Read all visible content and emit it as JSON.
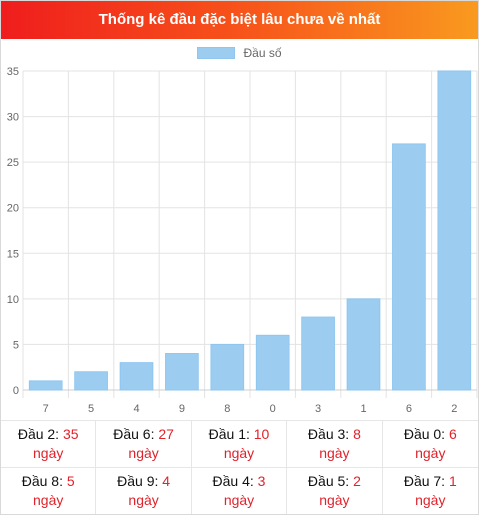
{
  "header": {
    "title": "Thống kê đầu đặc biệt lâu chưa về nhất"
  },
  "legend": {
    "label": "Đầu số",
    "color": "#9ccdf1"
  },
  "chart_data": {
    "type": "bar",
    "categories": [
      "7",
      "5",
      "4",
      "9",
      "8",
      "0",
      "3",
      "1",
      "6",
      "2"
    ],
    "series": [
      {
        "name": "Đầu số",
        "values": [
          1,
          2,
          3,
          4,
          5,
          6,
          8,
          10,
          27,
          35
        ]
      }
    ],
    "ylim": [
      0,
      35
    ],
    "yticks": [
      "0",
      "5",
      "10",
      "15",
      "20",
      "25",
      "30",
      "35"
    ],
    "grid": true,
    "legend_position": "top"
  },
  "stats": {
    "unit": "ngày",
    "items": [
      {
        "label": "Đầu 2:",
        "value": "35"
      },
      {
        "label": "Đầu 6:",
        "value": "27"
      },
      {
        "label": "Đầu 1:",
        "value": "10"
      },
      {
        "label": "Đầu 3:",
        "value": "8"
      },
      {
        "label": "Đầu 0:",
        "value": "6"
      },
      {
        "label": "Đầu 8:",
        "value": "5"
      },
      {
        "label": "Đầu 9:",
        "value": "4"
      },
      {
        "label": "Đầu 4:",
        "value": "3"
      },
      {
        "label": "Đầu 5:",
        "value": "2"
      },
      {
        "label": "Đầu 7:",
        "value": "1"
      }
    ]
  }
}
